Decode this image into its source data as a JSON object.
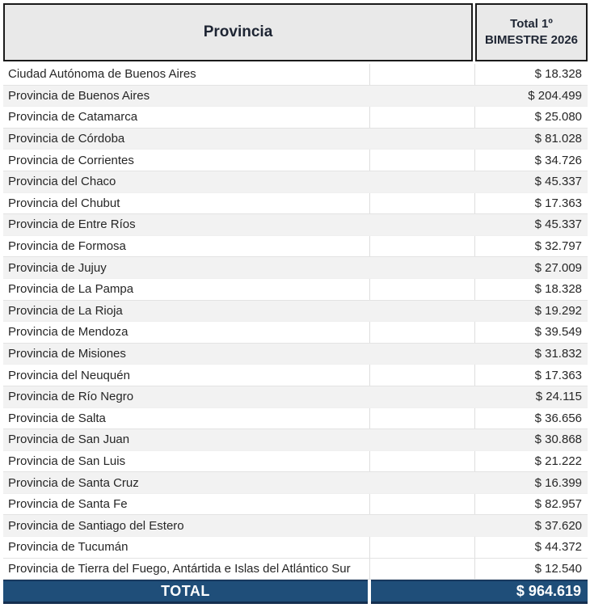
{
  "table": {
    "header": {
      "provincia": "Provincia",
      "total_line1": "Total 1º",
      "total_line2": "BIMESTRE 2026"
    },
    "rows": [
      {
        "name": "Ciudad Autónoma de Buenos Aires",
        "value": "$ 18.328",
        "shaded": false
      },
      {
        "name": "Provincia de Buenos Aires",
        "value": "$ 204.499",
        "shaded": true
      },
      {
        "name": "Provincia de Catamarca",
        "value": "$ 25.080",
        "shaded": false
      },
      {
        "name": "Provincia de Córdoba",
        "value": "$ 81.028",
        "shaded": true
      },
      {
        "name": "Provincia de Corrientes",
        "value": "$ 34.726",
        "shaded": false
      },
      {
        "name": "Provincia del Chaco",
        "value": "$ 45.337",
        "shaded": true
      },
      {
        "name": "Provincia del Chubut",
        "value": "$ 17.363",
        "shaded": false
      },
      {
        "name": "Provincia de Entre Ríos",
        "value": "$ 45.337",
        "shaded": true
      },
      {
        "name": "Provincia de Formosa",
        "value": "$ 32.797",
        "shaded": false
      },
      {
        "name": "Provincia de Jujuy",
        "value": "$ 27.009",
        "shaded": true
      },
      {
        "name": "Provincia de La Pampa",
        "value": "$ 18.328",
        "shaded": false
      },
      {
        "name": "Provincia de La Rioja",
        "value": "$ 19.292",
        "shaded": true
      },
      {
        "name": "Provincia de Mendoza",
        "value": "$ 39.549",
        "shaded": false
      },
      {
        "name": "Provincia de Misiones",
        "value": "$ 31.832",
        "shaded": true
      },
      {
        "name": "Provincia del Neuquén",
        "value": "$ 17.363",
        "shaded": false
      },
      {
        "name": "Provincia de Río Negro",
        "value": "$ 24.115",
        "shaded": true
      },
      {
        "name": "Provincia de Salta",
        "value": "$ 36.656",
        "shaded": false
      },
      {
        "name": "Provincia de San Juan",
        "value": "$ 30.868",
        "shaded": true
      },
      {
        "name": "Provincia de San Luis",
        "value": "$ 21.222",
        "shaded": false
      },
      {
        "name": "Provincia de Santa Cruz",
        "value": "$ 16.399",
        "shaded": true
      },
      {
        "name": "Provincia de Santa Fe",
        "value": "$ 82.957",
        "shaded": false
      },
      {
        "name": "Provincia de Santiago del Estero",
        "value": "$ 37.620",
        "shaded": true
      },
      {
        "name": "Provincia de Tucumán",
        "value": "$ 44.372",
        "shaded": false
      },
      {
        "name": "Provincia de Tierra del Fuego, Antártida e Islas del Atlántico Sur",
        "value": "$ 12.540",
        "shaded": false
      }
    ],
    "total": {
      "label": "TOTAL",
      "value": "$ 964.619"
    }
  },
  "colors": {
    "header_bg": "#E9E9E9",
    "stripe_bg": "#F2F2F2",
    "total_bg": "#1F4E79",
    "total_text": "#FFFFFF",
    "body_text": "#262626"
  },
  "chart_data": {
    "type": "table",
    "title": "Total 1º BIMESTRE 2026 por Provincia",
    "columns": [
      "Provincia",
      "Total 1º BIMESTRE 2026"
    ],
    "categories": [
      "Ciudad Autónoma de Buenos Aires",
      "Provincia de Buenos Aires",
      "Provincia de Catamarca",
      "Provincia de Córdoba",
      "Provincia de Corrientes",
      "Provincia del Chaco",
      "Provincia del Chubut",
      "Provincia de Entre Ríos",
      "Provincia de Formosa",
      "Provincia de Jujuy",
      "Provincia de La Pampa",
      "Provincia de La Rioja",
      "Provincia de Mendoza",
      "Provincia de Misiones",
      "Provincia del Neuquén",
      "Provincia de Río Negro",
      "Provincia de Salta",
      "Provincia de San Juan",
      "Provincia de San Luis",
      "Provincia de Santa Cruz",
      "Provincia de Santa Fe",
      "Provincia de Santiago del Estero",
      "Provincia de Tucumán",
      "Provincia de Tierra del Fuego, Antártida e Islas del Atlántico Sur"
    ],
    "values": [
      18328,
      204499,
      25080,
      81028,
      34726,
      45337,
      17363,
      45337,
      32797,
      27009,
      18328,
      19292,
      39549,
      31832,
      17363,
      24115,
      36656,
      30868,
      21222,
      16399,
      82957,
      37620,
      44372,
      12540
    ],
    "total": 964619,
    "currency": "$",
    "thousands_separator": "."
  }
}
